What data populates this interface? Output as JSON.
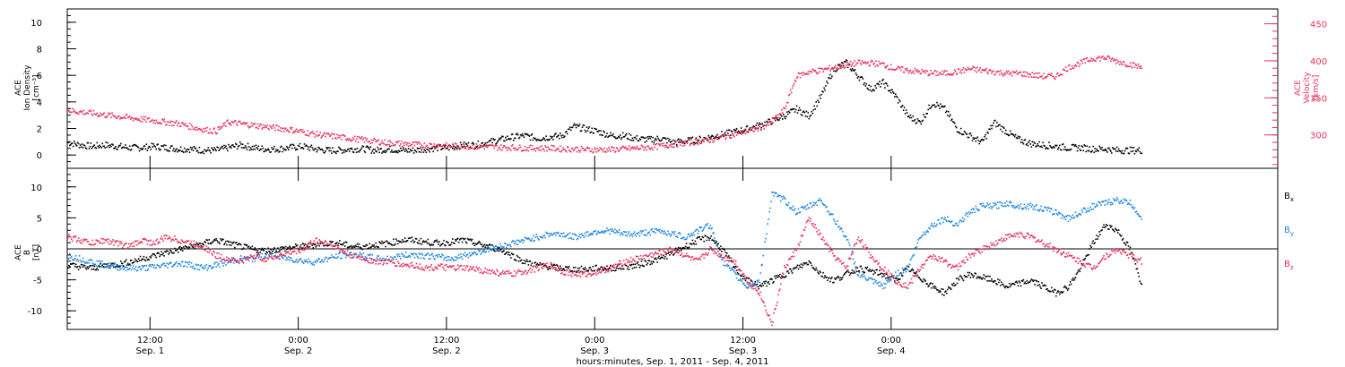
{
  "chart_data": [
    {
      "type": "scatter",
      "panel": "top",
      "ylabel_left": [
        "ACE",
        "Ion Density",
        "[cm⁻³]"
      ],
      "ylabel_right": [
        "ACE",
        "Velocity",
        "[km/s]"
      ],
      "ylim_left": [
        -1,
        11
      ],
      "ylim_right": [
        255,
        470
      ],
      "left_ticks": [
        0,
        2,
        4,
        6,
        8,
        10
      ],
      "right_ticks": [
        300,
        350,
        400,
        450
      ],
      "grid": false,
      "series": [
        {
          "name": "Ion Density",
          "axis": "left",
          "color": "#000000",
          "x": [
            0,
            1,
            2,
            3,
            4,
            5,
            6,
            7,
            8,
            9,
            10,
            11,
            12,
            13,
            14,
            15,
            16,
            17,
            18,
            19,
            20,
            21,
            22,
            23,
            24,
            25,
            26,
            27,
            28,
            29,
            30,
            31,
            32,
            33,
            34,
            35,
            36,
            37,
            38,
            39,
            40,
            41,
            42,
            43,
            44,
            45,
            46,
            47,
            48,
            49,
            50,
            51,
            52,
            53,
            54,
            55,
            56,
            57,
            58,
            59,
            60,
            61,
            62,
            63,
            64,
            65,
            66,
            67,
            68,
            69,
            70,
            71,
            72,
            73,
            74,
            75,
            76,
            77,
            78,
            79,
            80,
            81,
            82,
            83,
            84,
            85,
            86,
            87
          ],
          "y": [
            1.0,
            0.8,
            0.7,
            0.8,
            0.7,
            0.6,
            0.6,
            0.7,
            0.6,
            0.5,
            0.5,
            0.4,
            0.4,
            0.6,
            0.8,
            0.6,
            0.5,
            0.5,
            0.6,
            0.7,
            0.5,
            0.4,
            0.4,
            0.5,
            0.5,
            0.4,
            0.5,
            0.4,
            0.4,
            0.5,
            0.6,
            0.6,
            0.8,
            0.8,
            1.0,
            1.2,
            1.4,
            1.5,
            1.3,
            1.4,
            1.5,
            2.2,
            2.0,
            1.8,
            1.5,
            1.5,
            1.3,
            1.2,
            1.3,
            1.0,
            1.1,
            1.2,
            1.4,
            1.6,
            1.8,
            2.0,
            2.3,
            2.6,
            3.0,
            3.5,
            3.0,
            4.5,
            6.5,
            7.0,
            6.0,
            5.0,
            5.5,
            4.5,
            3.0,
            2.5,
            4.0,
            3.5,
            2.0,
            1.5,
            1.0,
            2.5,
            1.8,
            1.2,
            0.9,
            0.8,
            0.7,
            0.6,
            0.6,
            0.5,
            0.5,
            0.4,
            0.4,
            0.4
          ]
        },
        {
          "name": "Velocity",
          "axis": "right",
          "color": "#e8305c",
          "x": [
            0,
            1,
            2,
            3,
            4,
            5,
            6,
            7,
            8,
            9,
            10,
            11,
            12,
            13,
            14,
            15,
            16,
            17,
            18,
            19,
            20,
            21,
            22,
            23,
            24,
            25,
            26,
            27,
            28,
            29,
            30,
            31,
            32,
            33,
            34,
            35,
            36,
            37,
            38,
            39,
            40,
            41,
            42,
            43,
            44,
            45,
            46,
            47,
            48,
            49,
            50,
            51,
            52,
            53,
            54,
            55,
            56,
            57,
            58,
            59,
            60,
            61,
            62,
            63,
            64,
            65,
            66,
            67,
            68,
            69,
            70,
            71,
            72,
            73,
            74,
            75,
            76,
            77,
            78,
            79,
            80,
            81,
            82,
            83,
            84,
            85,
            86,
            87
          ],
          "y": [
            334,
            332,
            330,
            328,
            326,
            324,
            322,
            320,
            318,
            316,
            312,
            308,
            306,
            318,
            316,
            314,
            312,
            310,
            308,
            305,
            302,
            300,
            298,
            296,
            294,
            292,
            290,
            289,
            288,
            287,
            287,
            286,
            286,
            285,
            285,
            284,
            284,
            283,
            283,
            283,
            282,
            282,
            281,
            281,
            281,
            282,
            283,
            284,
            286,
            288,
            290,
            292,
            294,
            298,
            302,
            306,
            310,
            318,
            335,
            380,
            386,
            388,
            392,
            395,
            398,
            398,
            396,
            390,
            388,
            386,
            384,
            384,
            386,
            390,
            388,
            386,
            384,
            384,
            382,
            380,
            380,
            392,
            398,
            404,
            405,
            400,
            396,
            392
          ]
        }
      ]
    },
    {
      "type": "scatter",
      "panel": "bottom",
      "ylabel_left": [
        "ACE",
        "B",
        "[nT]"
      ],
      "ylim": [
        -13,
        13
      ],
      "left_ticks": [
        -10,
        -5,
        0,
        5,
        10
      ],
      "zero_line": true,
      "grid": false,
      "xlabel": "hours:minutes, Sep.  1, 2011 - Sep.  4, 2011",
      "x_ticks": [
        {
          "time": "12:00",
          "date": "Sep. 1"
        },
        {
          "time": "0:00",
          "date": "Sep. 2"
        },
        {
          "time": "12:00",
          "date": "Sep. 2"
        },
        {
          "time": "0:00",
          "date": "Sep. 3"
        },
        {
          "time": "12:00",
          "date": "Sep. 3"
        },
        {
          "time": "0:00",
          "date": "Sep. 4"
        }
      ],
      "series": [
        {
          "name": "Bx",
          "color": "#000000",
          "x": [
            0,
            1,
            2,
            3,
            4,
            5,
            6,
            7,
            8,
            9,
            10,
            11,
            12,
            13,
            14,
            15,
            16,
            17,
            18,
            19,
            20,
            21,
            22,
            23,
            24,
            25,
            26,
            27,
            28,
            29,
            30,
            31,
            32,
            33,
            34,
            35,
            36,
            37,
            38,
            39,
            40,
            41,
            42,
            43,
            44,
            45,
            46,
            47,
            48,
            49,
            50,
            51,
            52,
            53,
            54,
            55,
            56,
            57,
            58,
            59,
            60,
            61,
            62,
            63,
            64,
            65,
            66,
            67,
            68,
            69,
            70,
            71,
            72,
            73,
            74,
            75,
            76,
            77,
            78,
            79,
            80,
            81,
            82,
            83,
            84,
            85,
            86,
            87
          ],
          "y": [
            -2.5,
            -2.8,
            -3.0,
            -2.6,
            -2.4,
            -2.0,
            -1.5,
            -1.0,
            -0.5,
            0.0,
            0.5,
            1.0,
            1.5,
            1.0,
            0.5,
            0.0,
            -0.2,
            0.0,
            0.3,
            0.5,
            0.8,
            1.0,
            1.0,
            0.5,
            0.5,
            0.8,
            1.0,
            1.5,
            1.5,
            1.2,
            1.0,
            1.2,
            1.5,
            1.0,
            0.5,
            0.0,
            -1.0,
            -2.0,
            -2.5,
            -2.8,
            -3.0,
            -3.2,
            -3.2,
            -3.0,
            -3.0,
            -2.8,
            -2.6,
            -2.0,
            -1.5,
            -0.5,
            0.5,
            1.5,
            2.0,
            0.0,
            -3.0,
            -5.0,
            -6.0,
            -5.0,
            -4.0,
            -3.0,
            -2.0,
            -4.0,
            -5.0,
            -4.0,
            -3.0,
            -3.5,
            -4.0,
            -5.0,
            -3.0,
            -4.5,
            -6.0,
            -7.0,
            -5.0,
            -4.0,
            -4.5,
            -5.0,
            -6.0,
            -5.5,
            -5.0,
            -6.0,
            -7.0,
            -6.0,
            -3.0,
            1.0,
            4.0,
            3.0,
            0.0,
            -6.0
          ]
        },
        {
          "name": "By",
          "color": "#1e86e0",
          "x": [
            0,
            1,
            2,
            3,
            4,
            5,
            6,
            7,
            8,
            9,
            10,
            11,
            12,
            13,
            14,
            15,
            16,
            17,
            18,
            19,
            20,
            21,
            22,
            23,
            24,
            25,
            26,
            27,
            28,
            29,
            30,
            31,
            32,
            33,
            34,
            35,
            36,
            37,
            38,
            39,
            40,
            41,
            42,
            43,
            44,
            45,
            46,
            47,
            48,
            49,
            50,
            51,
            52,
            53,
            54,
            55,
            56,
            57,
            58,
            59,
            60,
            61,
            62,
            63,
            64,
            65,
            66,
            67,
            68,
            69,
            70,
            71,
            72,
            73,
            74,
            75,
            76,
            77,
            78,
            79,
            80,
            81,
            82,
            83,
            84,
            85,
            86,
            87
          ],
          "y": [
            -1.0,
            -1.5,
            -2.0,
            -2.5,
            -2.8,
            -3.0,
            -3.0,
            -2.8,
            -2.5,
            -2.2,
            -2.5,
            -3.0,
            -2.5,
            -2.0,
            -1.5,
            -1.5,
            -1.0,
            -1.2,
            -1.5,
            -1.8,
            -2.0,
            -1.5,
            -1.0,
            -0.8,
            -1.0,
            -1.5,
            -1.5,
            -1.0,
            -0.8,
            -1.0,
            -1.2,
            -1.5,
            -1.0,
            -0.5,
            0.0,
            0.5,
            1.0,
            1.5,
            2.0,
            2.5,
            2.5,
            2.0,
            2.5,
            3.0,
            3.0,
            2.5,
            2.5,
            2.8,
            3.0,
            2.5,
            2.0,
            3.0,
            4.0,
            -2.0,
            -4.0,
            -6.0,
            -5.0,
            9.0,
            8.0,
            6.0,
            7.0,
            8.0,
            5.0,
            2.0,
            -4.0,
            -5.0,
            -6.0,
            -4.0,
            -3.0,
            2.0,
            4.0,
            5.0,
            4.0,
            6.0,
            7.0,
            7.0,
            7.5,
            7.0,
            7.0,
            6.5,
            6.0,
            5.0,
            6.0,
            7.0,
            7.5,
            8.0,
            7.5,
            5.0
          ]
        },
        {
          "name": "Bz",
          "color": "#e8305c",
          "x": [
            0,
            1,
            2,
            3,
            4,
            5,
            6,
            7,
            8,
            9,
            10,
            11,
            12,
            13,
            14,
            15,
            16,
            17,
            18,
            19,
            20,
            21,
            22,
            23,
            24,
            25,
            26,
            27,
            28,
            29,
            30,
            31,
            32,
            33,
            34,
            35,
            36,
            37,
            38,
            39,
            40,
            41,
            42,
            43,
            44,
            45,
            46,
            47,
            48,
            49,
            50,
            51,
            52,
            53,
            54,
            55,
            56,
            57,
            58,
            59,
            60,
            61,
            62,
            63,
            64,
            65,
            66,
            67,
            68,
            69,
            70,
            71,
            72,
            73,
            74,
            75,
            76,
            77,
            78,
            79,
            80,
            81,
            82,
            83,
            84,
            85,
            86,
            87
          ],
          "y": [
            2.0,
            1.5,
            1.0,
            1.5,
            1.0,
            0.5,
            1.5,
            1.0,
            2.0,
            1.5,
            1.0,
            0.5,
            -1.0,
            -1.5,
            -2.0,
            -1.0,
            -1.5,
            -1.0,
            -0.5,
            0.0,
            1.5,
            1.0,
            0.0,
            -1.0,
            -1.5,
            -2.0,
            -2.0,
            -2.5,
            -2.5,
            -3.0,
            -2.8,
            -3.0,
            -3.0,
            -3.2,
            -3.5,
            -3.8,
            -4.0,
            -3.5,
            -3.0,
            -2.5,
            -3.5,
            -4.0,
            -4.0,
            -3.5,
            -3.0,
            -2.0,
            -1.5,
            -1.0,
            -0.5,
            0.0,
            -1.0,
            -2.0,
            0.0,
            -1.0,
            -2.0,
            -5.0,
            -7.0,
            -12.0,
            -3.0,
            0.0,
            5.0,
            2.0,
            -1.0,
            -3.0,
            2.0,
            -1.0,
            -3.0,
            -5.0,
            -6.0,
            -3.0,
            -1.0,
            -2.0,
            -3.0,
            -1.0,
            0.0,
            1.0,
            2.0,
            2.5,
            2.0,
            1.0,
            0.0,
            -1.0,
            -2.0,
            -3.0,
            -1.0,
            0.0,
            -1.0,
            -2.0
          ]
        }
      ],
      "legend": {
        "placement": "right",
        "entries": [
          {
            "main": "B",
            "sub": "x",
            "color": "#000000"
          },
          {
            "main": "B",
            "sub": "y",
            "color": "#1e86e0"
          },
          {
            "main": "B",
            "sub": "z",
            "color": "#e8305c"
          }
        ]
      }
    }
  ]
}
